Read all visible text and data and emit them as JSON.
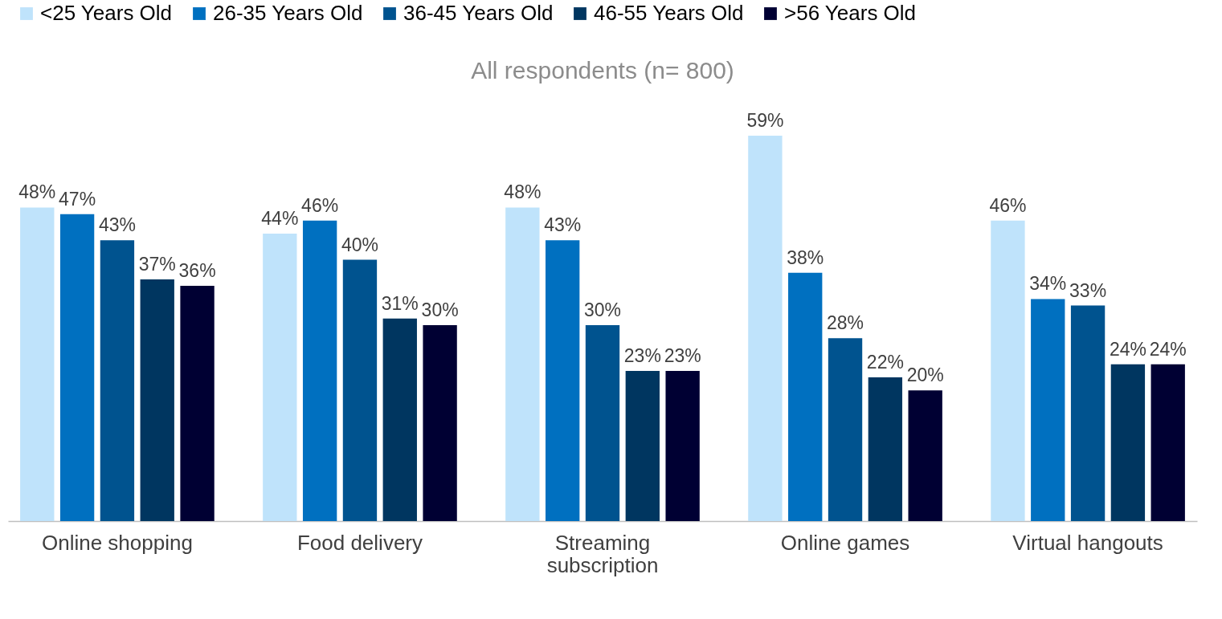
{
  "chart_data": {
    "type": "bar",
    "title": "All respondents (n= 800)",
    "categories": [
      "Online shopping",
      "Food delivery",
      "Streaming subscription",
      "Online games",
      "Virtual hangouts"
    ],
    "series": [
      {
        "name": "<25 Years Old",
        "color": "#bfe3fb",
        "values": [
          48,
          44,
          48,
          59,
          46
        ],
        "value_labels": [
          "48%",
          "44%",
          "48%",
          "59%",
          "46%"
        ]
      },
      {
        "name": "26-35 Years Old",
        "color": "#0070c0",
        "values": [
          47,
          46,
          43,
          38,
          34
        ],
        "value_labels": [
          "47%",
          "46%",
          "43%",
          "38%",
          "34%"
        ]
      },
      {
        "name": "36-45 Years Old",
        "color": "#00538f",
        "values": [
          43,
          40,
          30,
          28,
          33
        ],
        "value_labels": [
          "43%",
          "40%",
          "30%",
          "28%",
          "33%"
        ]
      },
      {
        "name": "46-55 Years Old",
        "color": "#003660",
        "values": [
          37,
          31,
          23,
          22,
          24
        ],
        "value_labels": [
          "37%",
          "31%",
          "23%",
          "22%",
          "24%"
        ]
      },
      {
        "name": ">56 Years Old",
        "color": "#000033",
        "values": [
          36,
          30,
          23,
          20,
          24
        ],
        "value_labels": [
          "36%",
          "30%",
          "23%",
          "20%",
          "24%"
        ]
      }
    ],
    "legend": "top",
    "tick_labels": "x"
  }
}
